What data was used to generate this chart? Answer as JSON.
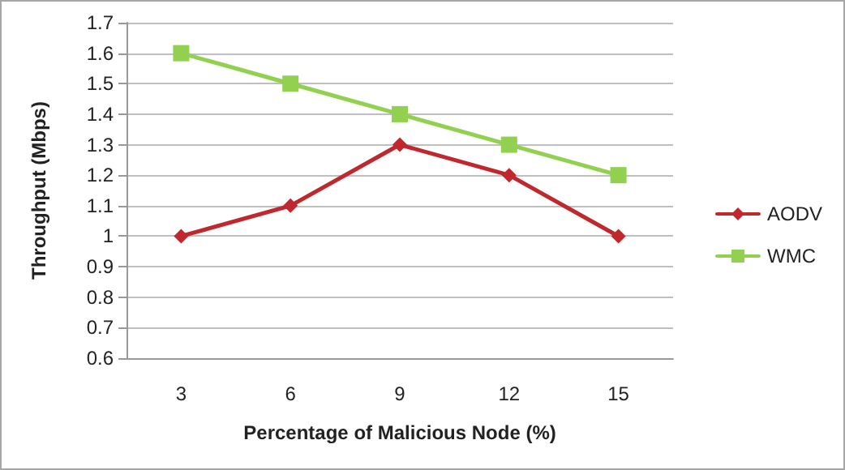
{
  "chart_data": {
    "type": "line",
    "xlabel": "Percentage of Malicious Node (%)",
    "ylabel": "Throughput (Mbps)",
    "categories": [
      "3",
      "6",
      "9",
      "12",
      "15"
    ],
    "series": [
      {
        "name": "AODV",
        "color": "#c0282d",
        "marker": "diamond",
        "values": [
          1.0,
          1.1,
          1.3,
          1.2,
          1.0
        ]
      },
      {
        "name": "WMC",
        "color": "#92d050",
        "marker": "square",
        "values": [
          1.6,
          1.5,
          1.4,
          1.3,
          1.2
        ]
      }
    ],
    "ylim": [
      0.6,
      1.7
    ],
    "yticks": [
      0.6,
      0.7,
      0.8,
      0.9,
      1,
      1.1,
      1.2,
      1.3,
      1.4,
      1.5,
      1.6,
      1.7
    ],
    "grid": "y",
    "legend": "right",
    "line_style": "solid"
  }
}
